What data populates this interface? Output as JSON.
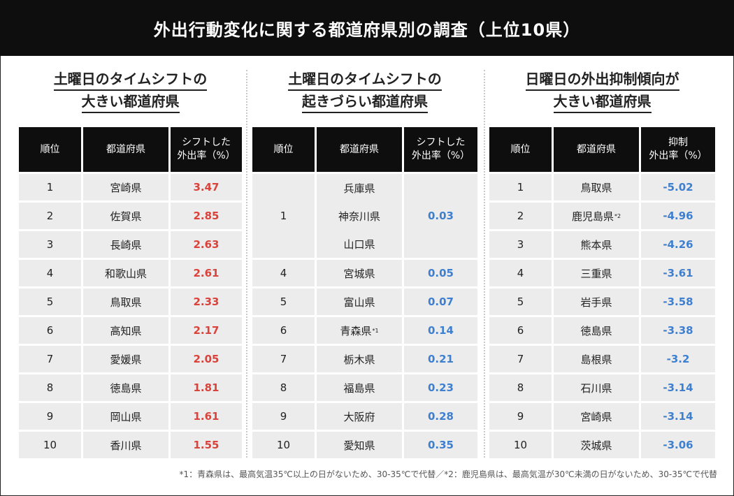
{
  "title": "外出行動変化に関する都道府県別の調査（上位10県）",
  "note": "*1：青森県は、最高気温35℃以上の日がないため、30-35℃で代替／*2：鹿児島県は、最高気温が30℃未満の日がないため、30-35℃で代替",
  "colors": {
    "red": "#d9433b",
    "blue": "#3f7fcf",
    "header_bg": "#0e0e0e",
    "cell_bg": "#ececec"
  },
  "chart_data": [
    {
      "type": "table",
      "title_line1": "土曜日のタイムシフトの",
      "title_line2": "大きい都道府県",
      "headers": [
        "順位",
        "都道府県",
        "シフトした\n外出率（%）"
      ],
      "rows": [
        {
          "rank": "1",
          "pref": "宮崎県",
          "value": "3.47"
        },
        {
          "rank": "2",
          "pref": "佐賀県",
          "value": "2.85"
        },
        {
          "rank": "3",
          "pref": "長崎県",
          "value": "2.63"
        },
        {
          "rank": "4",
          "pref": "和歌山県",
          "value": "2.61"
        },
        {
          "rank": "5",
          "pref": "鳥取県",
          "value": "2.33"
        },
        {
          "rank": "6",
          "pref": "高知県",
          "value": "2.17"
        },
        {
          "rank": "7",
          "pref": "愛媛県",
          "value": "2.05"
        },
        {
          "rank": "8",
          "pref": "徳島県",
          "value": "1.81"
        },
        {
          "rank": "9",
          "pref": "岡山県",
          "value": "1.61"
        },
        {
          "rank": "10",
          "pref": "香川県",
          "value": "1.55"
        }
      ]
    },
    {
      "type": "table",
      "title_line1": "土曜日のタイムシフトの",
      "title_line2": "起きづらい都道府県",
      "headers": [
        "順位",
        "都道府県",
        "シフトした\n外出率（%）"
      ],
      "merged": {
        "rank": "1",
        "prefs": [
          "兵庫県",
          "神奈川県",
          "山口県"
        ],
        "value": "0.03"
      },
      "rows": [
        {
          "rank": "4",
          "pref": "宮城県",
          "value": "0.05"
        },
        {
          "rank": "5",
          "pref": "富山県",
          "value": "0.07"
        },
        {
          "rank": "6",
          "pref": "青森県",
          "sup": "*1",
          "value": "0.14"
        },
        {
          "rank": "7",
          "pref": "栃木県",
          "value": "0.21"
        },
        {
          "rank": "8",
          "pref": "福島県",
          "value": "0.23"
        },
        {
          "rank": "9",
          "pref": "大阪府",
          "value": "0.28"
        },
        {
          "rank": "10",
          "pref": "愛知県",
          "value": "0.35"
        }
      ]
    },
    {
      "type": "table",
      "title_line1": "日曜日の外出抑制傾向が",
      "title_line2": "大きい都道府県",
      "headers": [
        "順位",
        "都道府県",
        "抑制\n外出率（%）"
      ],
      "rows": [
        {
          "rank": "1",
          "pref": "鳥取県",
          "value": "-5.02"
        },
        {
          "rank": "2",
          "pref": "鹿児島県",
          "sup": "*2",
          "value": "-4.96"
        },
        {
          "rank": "3",
          "pref": "熊本県",
          "value": "-4.26"
        },
        {
          "rank": "4",
          "pref": "三重県",
          "value": "-3.61"
        },
        {
          "rank": "5",
          "pref": "岩手県",
          "value": "-3.58"
        },
        {
          "rank": "6",
          "pref": "徳島県",
          "value": "-3.38"
        },
        {
          "rank": "7",
          "pref": "島根県",
          "value": "-3.2"
        },
        {
          "rank": "8",
          "pref": "石川県",
          "value": "-3.14"
        },
        {
          "rank": "9",
          "pref": "宮崎県",
          "value": "-3.14"
        },
        {
          "rank": "10",
          "pref": "茨城県",
          "value": "-3.06"
        }
      ]
    }
  ]
}
